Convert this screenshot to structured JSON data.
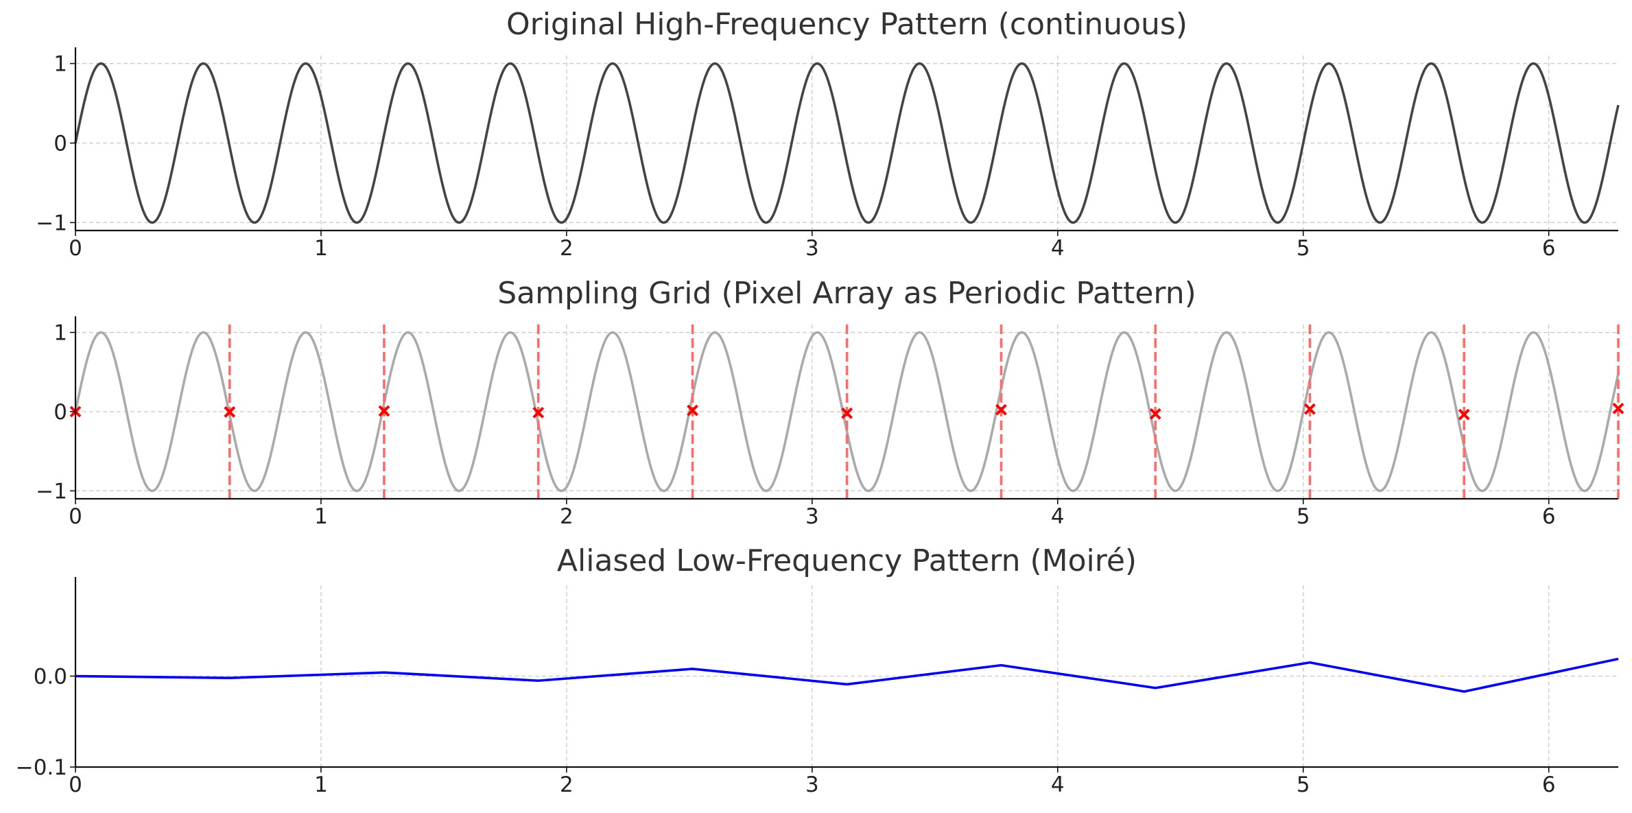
{
  "chart_data": [
    {
      "type": "line",
      "title": "Original High-Frequency Pattern (continuous)",
      "xlim": [
        0,
        6.283
      ],
      "ylim": [
        -1.1,
        1.1
      ],
      "x_ticks": [
        0,
        1,
        2,
        3,
        4,
        5,
        6
      ],
      "x_tick_labels": [
        "0",
        "1",
        "2",
        "3",
        "4",
        "5",
        "6"
      ],
      "y_ticks": [
        -1,
        0,
        1
      ],
      "y_tick_labels": [
        "−1",
        "0",
        "1"
      ],
      "grid": true,
      "series": [
        {
          "function": "sin(2*pi*f*x)",
          "frequency": 2.4,
          "color": "#444444"
        }
      ]
    },
    {
      "type": "line",
      "title": "Sampling Grid (Pixel Array as Periodic Pattern)",
      "xlim": [
        0,
        6.283
      ],
      "ylim": [
        -1.1,
        1.1
      ],
      "x_ticks": [
        0,
        1,
        2,
        3,
        4,
        5,
        6
      ],
      "x_tick_labels": [
        "0",
        "1",
        "2",
        "3",
        "4",
        "5",
        "6"
      ],
      "y_ticks": [
        -1,
        0,
        1
      ],
      "y_tick_labels": [
        "−1",
        "0",
        "1"
      ],
      "grid": true,
      "series": [
        {
          "function": "sin(2*pi*f*x)",
          "frequency": 2.4,
          "color": "#aaaaaa"
        }
      ],
      "sample_lines": {
        "color": "#ff6b6b"
      },
      "sample_markers": {
        "marker": "x",
        "color": "#ff0000"
      },
      "samples": {
        "x": [
          0,
          0.628,
          1.257,
          1.885,
          2.513,
          3.142,
          3.77,
          4.398,
          5.027,
          5.655,
          6.283
        ],
        "y": [
          0,
          -0.004,
          0.008,
          -0.012,
          0.016,
          -0.02,
          0.024,
          -0.028,
          0.032,
          -0.036,
          0.04
        ]
      }
    },
    {
      "type": "line",
      "title": "Aliased Low-Frequency Pattern (Moiré)",
      "xlim": [
        0,
        6.283
      ],
      "ylim": [
        -0.1,
        0.1
      ],
      "x_ticks": [
        0,
        1,
        2,
        3,
        4,
        5,
        6
      ],
      "x_tick_labels": [
        "0",
        "1",
        "2",
        "3",
        "4",
        "5",
        "6"
      ],
      "y_ticks": [
        -0.1,
        0.0
      ],
      "y_tick_labels": [
        "−0.1",
        "0.0"
      ],
      "grid": true,
      "series": [
        {
          "color": "#0000ee",
          "x": [
            0,
            0.628,
            1.257,
            1.885,
            2.513,
            3.142,
            3.77,
            4.398,
            5.027,
            5.655,
            6.283
          ],
          "y": [
            0,
            -0.002,
            0.004,
            -0.005,
            0.008,
            -0.009,
            0.012,
            -0.013,
            0.015,
            -0.017,
            0.019
          ]
        }
      ]
    }
  ]
}
